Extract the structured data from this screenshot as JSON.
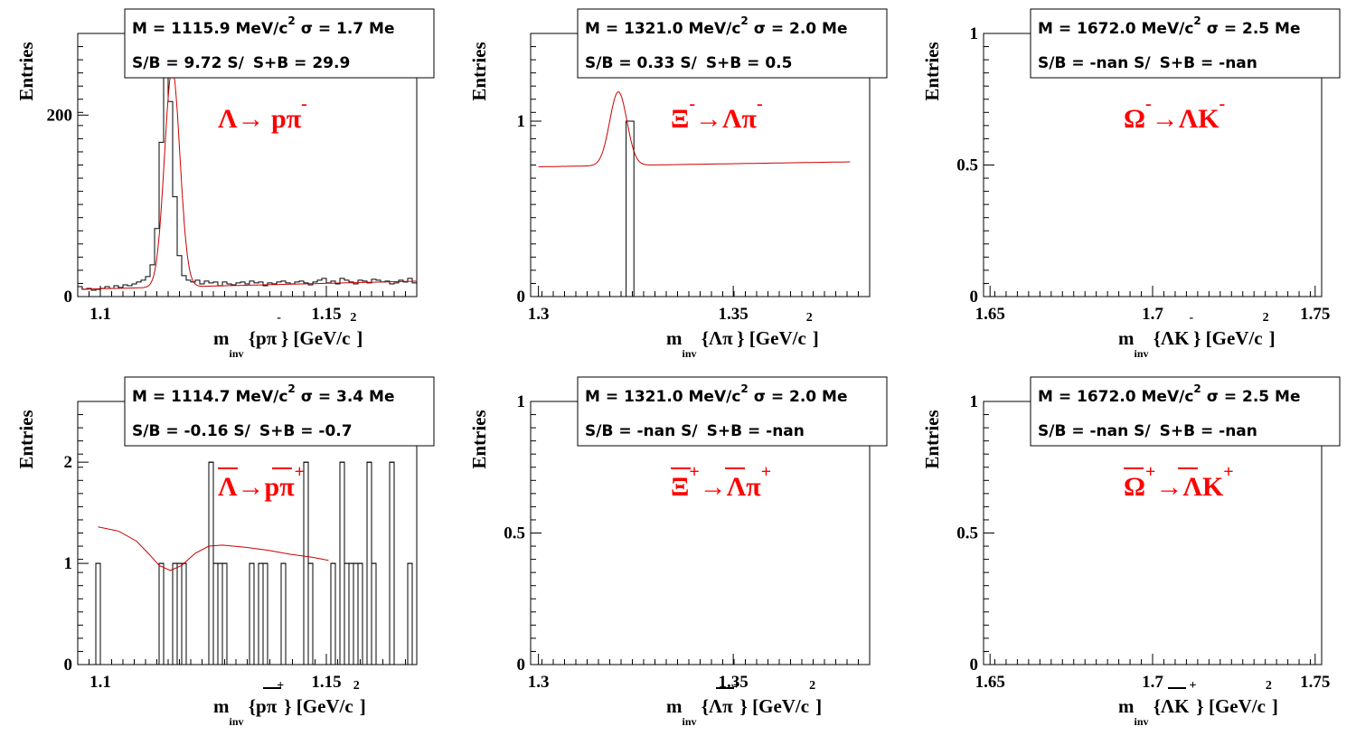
{
  "chart_data": [
    {
      "type": "histogram",
      "xlim": [
        1.095,
        1.17
      ],
      "ylim": [
        0,
        290
      ],
      "xticks": [
        {
          "v": 1.1,
          "t": "1.1"
        },
        {
          "v": 1.15,
          "t": "1.15"
        }
      ],
      "yticks": [
        {
          "v": 0,
          "t": "0"
        },
        {
          "v": 200,
          "t": "200"
        }
      ],
      "ylabel": "Entries",
      "xlabel": {
        "pre": "m",
        "sub": "inv",
        "mid": " {pπ",
        "sup": "-",
        "post": "} [GeV/c",
        "sup2": "2",
        "end": "]"
      },
      "stats": {
        "line1": "M = 1115.9 MeV/c",
        "line1_sup": "2",
        "line1_tail": " σ = 1.7 Me",
        "line2_a": "S/B = 9.72   S/",
        "line2_b": "S+B = 29.9"
      },
      "decay": {
        "text": "Λ→ pπ",
        "sup": "-"
      },
      "bin_width": 0.001,
      "bins_x0": 1.095,
      "counts": [
        11,
        8,
        9,
        7,
        8,
        9,
        11,
        9,
        12,
        10,
        13,
        12,
        14,
        16,
        18,
        22,
        35,
        75,
        170,
        272,
        215,
        110,
        45,
        23,
        18,
        16,
        18,
        14,
        17,
        15,
        16,
        12,
        16,
        14,
        13,
        15,
        16,
        14,
        17,
        15,
        16,
        12,
        15,
        14,
        16,
        17,
        15,
        14,
        16,
        17,
        15,
        13,
        16,
        18,
        20,
        15,
        17,
        14,
        20,
        18,
        16,
        14,
        18,
        17,
        15,
        19,
        18,
        16,
        17,
        14,
        15,
        18,
        16,
        20,
        15
      ],
      "fit": {
        "mean": 1.1159,
        "sigma": 0.0017,
        "amp": 240,
        "b0": 8,
        "b1": 120
      }
    },
    {
      "type": "histogram",
      "xlim": [
        1.298,
        1.385
      ],
      "ylim": [
        0,
        1.5
      ],
      "xticks": [
        {
          "v": 1.3,
          "t": "1.3"
        },
        {
          "v": 1.35,
          "t": "1.35"
        }
      ],
      "yticks": [
        {
          "v": 0,
          "t": "0"
        },
        {
          "v": 1,
          "t": "1"
        }
      ],
      "ylabel": "Entries",
      "xlabel": {
        "pre": "m",
        "sub": "inv",
        "mid": " {Λπ",
        "sup": "-",
        "post": "} [GeV/c",
        "sup2": "2",
        "end": "]"
      },
      "stats": {
        "line1": "M = 1321.0 MeV/c",
        "line1_sup": "2",
        "line1_tail": " σ = 2.0 Me",
        "line2_a": "S/B = 0.33   S/",
        "line2_b": "S+B = 0.5"
      },
      "decay": {
        "text": "Ξ",
        "sup": "-",
        "text2": "→Λπ",
        "sup2": "-"
      },
      "bars": [
        {
          "x0": 1.3225,
          "x1": 1.3245,
          "y": 1
        }
      ],
      "fit": {
        "mean": 1.3205,
        "sigma": 0.0022,
        "amp": 0.42,
        "b0": 0.74,
        "b1": 0.35,
        "x0": 1.3,
        "xmax": 1.38
      }
    },
    {
      "type": "histogram",
      "xlim": [
        1.648,
        1.752
      ],
      "ylim": [
        0,
        1
      ],
      "xticks": [
        {
          "v": 1.65,
          "t": "1.65"
        },
        {
          "v": 1.7,
          "t": "1.7"
        },
        {
          "v": 1.75,
          "t": "1.75"
        }
      ],
      "yticks": [
        {
          "v": 0,
          "t": "0"
        },
        {
          "v": 0.5,
          "t": "0.5"
        },
        {
          "v": 1,
          "t": "1"
        }
      ],
      "ylabel": "Entries",
      "xlabel": {
        "pre": "m",
        "sub": "inv",
        "mid": " {ΛK",
        "sup": "-",
        "post": "} [GeV/c",
        "sup2": "2",
        "end": "]"
      },
      "stats": {
        "line1": "M = 1672.0 MeV/c",
        "line1_sup": "2",
        "line1_tail": " σ = 2.5 Me",
        "line2_a": "S/B = -nan   S/",
        "line2_b": "S+B = -nan"
      },
      "decay": {
        "text": "Ω",
        "sup": "-",
        "text2": "→ΛK",
        "sup2": "-"
      }
    },
    {
      "type": "histogram",
      "xlim": [
        1.095,
        1.17
      ],
      "ylim": [
        0,
        2.6
      ],
      "xticks": [
        {
          "v": 1.1,
          "t": "1.1"
        },
        {
          "v": 1.15,
          "t": "1.15"
        }
      ],
      "yticks": [
        {
          "v": 0,
          "t": "0"
        },
        {
          "v": 1,
          "t": "1"
        },
        {
          "v": 2,
          "t": "2"
        }
      ],
      "ylabel": "Entries",
      "xlabel": {
        "pre": "m",
        "sub": "inv",
        "mid": " {pπ",
        "sup": "+",
        "post": "} [GeV/c",
        "sup2": "2",
        "end": "]",
        "bar": true
      },
      "stats": {
        "line1": "M = 1114.7 MeV/c",
        "line1_sup": "2",
        "line1_tail": " σ = 3.4 Me",
        "line2_a": "S/B = -0.16   S/",
        "line2_b": "S+B = -0.7"
      },
      "decay": {
        "text": "Λ→pπ",
        "sup": "+",
        "bar": true
      },
      "bin_width": 0.001,
      "bins_x0": 1.095,
      "counts": [
        0,
        0,
        0,
        0,
        1,
        0,
        0,
        0,
        0,
        0,
        0,
        0,
        0,
        0,
        0,
        0,
        0,
        0,
        1,
        0,
        0,
        1,
        1,
        1,
        0,
        0,
        0,
        0,
        0,
        2,
        1,
        1,
        1,
        0,
        0,
        0,
        0,
        0,
        1,
        0,
        1,
        1,
        0,
        0,
        0,
        1,
        0,
        0,
        0,
        0,
        2,
        1,
        0,
        0,
        0,
        0,
        1,
        0,
        2,
        1,
        1,
        1,
        1,
        0,
        2,
        1,
        0,
        0,
        0,
        2,
        0,
        0,
        0,
        1,
        0
      ],
      "fit": {
        "curve": [
          [
            1.0995,
            1.36
          ],
          [
            1.104,
            1.32
          ],
          [
            1.108,
            1.22
          ],
          [
            1.111,
            1.08
          ],
          [
            1.113,
            0.98
          ],
          [
            1.1155,
            0.93
          ],
          [
            1.118,
            0.98
          ],
          [
            1.121,
            1.1
          ],
          [
            1.124,
            1.17
          ],
          [
            1.127,
            1.18
          ],
          [
            1.132,
            1.16
          ],
          [
            1.137,
            1.13
          ],
          [
            1.142,
            1.09
          ],
          [
            1.147,
            1.06
          ],
          [
            1.1505,
            1.03
          ]
        ]
      }
    },
    {
      "type": "histogram",
      "xlim": [
        1.298,
        1.385
      ],
      "ylim": [
        0,
        1
      ],
      "xticks": [
        {
          "v": 1.3,
          "t": "1.3"
        },
        {
          "v": 1.35,
          "t": "1.35"
        }
      ],
      "yticks": [
        {
          "v": 0,
          "t": "0"
        },
        {
          "v": 0.5,
          "t": "0.5"
        },
        {
          "v": 1,
          "t": "1"
        }
      ],
      "ylabel": "Entries",
      "xlabel": {
        "pre": "m",
        "sub": "inv",
        "mid": " {Λπ",
        "sup": "+",
        "post": "} [GeV/c",
        "sup2": "2",
        "end": "]",
        "bar": true
      },
      "stats": {
        "line1": "M = 1321.0 MeV/c",
        "line1_sup": "2",
        "line1_tail": " σ = 2.0 Me",
        "line2_a": "S/B = -nan   S/",
        "line2_b": "S+B = -nan"
      },
      "decay": {
        "text": "Ξ",
        "sup": "+",
        "text2": "→Λπ",
        "sup2": "+",
        "bar": true
      }
    },
    {
      "type": "histogram",
      "xlim": [
        1.648,
        1.752
      ],
      "ylim": [
        0,
        1
      ],
      "xticks": [
        {
          "v": 1.65,
          "t": "1.65"
        },
        {
          "v": 1.7,
          "t": "1.7"
        },
        {
          "v": 1.75,
          "t": "1.75"
        }
      ],
      "yticks": [
        {
          "v": 0,
          "t": "0"
        },
        {
          "v": 0.5,
          "t": "0.5"
        },
        {
          "v": 1,
          "t": "1"
        }
      ],
      "ylabel": "Entries",
      "xlabel": {
        "pre": "m",
        "sub": "inv",
        "mid": " {ΛK",
        "sup": "+",
        "post": "} [GeV/c",
        "sup2": "2",
        "end": "]",
        "bar": true
      },
      "stats": {
        "line1": "M = 1672.0 MeV/c",
        "line1_sup": "2",
        "line1_tail": " σ = 2.5 Me",
        "line2_a": "S/B = -nan   S/",
        "line2_b": "S+B = -nan"
      },
      "decay": {
        "text": "Ω",
        "sup": "+",
        "text2": "→ΛK",
        "sup2": "+",
        "bar": true
      }
    }
  ],
  "colors": {
    "hist": "#000000",
    "fit": "#cc0000",
    "decay": "#ff0000",
    "frame": "#000000"
  }
}
